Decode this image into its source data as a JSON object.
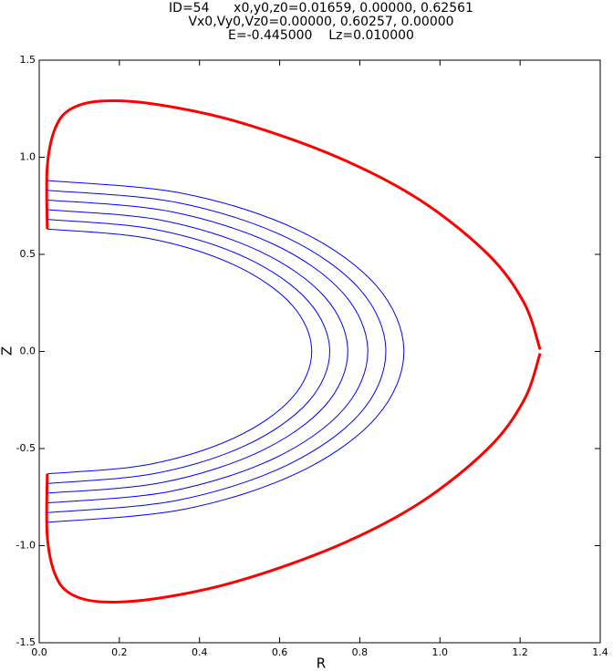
{
  "chart_data": {
    "type": "line",
    "title": [
      "ID=54      x0,y0,z0=0.01659, 0.00000, 0.62561",
      "Vx0,Vy0,Vz0=0.00000, 0.60257, 0.00000",
      "E=-0.445000    Lz=0.010000"
    ],
    "xlabel": "R",
    "ylabel": "Z",
    "xlim": [
      0,
      1.4
    ],
    "ylim": [
      -1.5,
      1.5
    ],
    "xticks": [
      {
        "value": 0,
        "label": "0.0"
      },
      0.2,
      0.4,
      0.6,
      0.8,
      {
        "value": 1,
        "label": "1.0"
      },
      1.2,
      1.4
    ],
    "yticks": [
      -1.5,
      {
        "value": -1,
        "label": "-1.0"
      },
      -0.5,
      {
        "value": 0,
        "label": "0.0"
      },
      0.5,
      {
        "value": 1,
        "label": "1.0"
      },
      1.5
    ],
    "grid": false,
    "series": [
      {
        "color": "#ff0000",
        "linewidth": 3,
        "x": [
          0.02,
          0.02,
          0.04,
          0.08,
          0.16,
          0.3,
          0.5,
          0.745,
          0.95,
          1.12,
          1.21,
          1.25,
          null,
          1.25,
          1.21,
          1.12,
          0.95,
          0.745,
          0.5,
          0.3,
          0.16,
          0.08,
          0.04,
          0.02,
          0.02
        ],
        "values": [
          0.63,
          0.95,
          1.15,
          1.25,
          1.29,
          1.27,
          1.18,
          1.0,
          0.78,
          0.5,
          0.25,
          0.01,
          null,
          -0.01,
          -0.25,
          -0.5,
          -0.78,
          -1.0,
          -1.18,
          -1.27,
          -1.29,
          -1.25,
          -1.15,
          -0.95,
          -0.63
        ]
      },
      {
        "color": "#0000ff",
        "linewidth": 1,
        "x": [
          0.02,
          0.273,
          0.487,
          0.63,
          0.68,
          0.63,
          0.487,
          0.273,
          0.02
        ],
        "values": [
          0.63,
          0.582,
          0.445,
          0.241,
          0,
          -0.241,
          -0.445,
          -0.582,
          -0.63
        ]
      },
      {
        "color": "#0000ff",
        "linewidth": 1,
        "x": [
          0.02,
          0.29,
          0.518,
          0.671,
          0.725,
          0.671,
          0.518,
          0.29,
          0.02
        ],
        "values": [
          0.68,
          0.628,
          0.481,
          0.26,
          0,
          -0.26,
          -0.481,
          -0.628,
          -0.68
        ]
      },
      {
        "color": "#0000ff",
        "linewidth": 1,
        "x": [
          0.02,
          0.307,
          0.55,
          0.713,
          0.77,
          0.713,
          0.55,
          0.307,
          0.02
        ],
        "values": [
          0.73,
          0.675,
          0.516,
          0.28,
          0,
          -0.28,
          -0.516,
          -0.675,
          -0.73
        ]
      },
      {
        "color": "#0000ff",
        "linewidth": 1,
        "x": [
          0.02,
          0.326,
          0.586,
          0.759,
          0.82,
          0.759,
          0.586,
          0.326,
          0.02
        ],
        "values": [
          0.78,
          0.721,
          0.551,
          0.299,
          0,
          -0.299,
          -0.551,
          -0.721,
          -0.78
        ]
      },
      {
        "color": "#0000ff",
        "linewidth": 1,
        "x": [
          0.02,
          0.344,
          0.617,
          0.801,
          0.865,
          0.801,
          0.617,
          0.344,
          0.02
        ],
        "values": [
          0.83,
          0.767,
          0.587,
          0.318,
          0,
          -0.318,
          -0.587,
          -0.767,
          -0.83
        ]
      },
      {
        "color": "#0000ff",
        "linewidth": 1,
        "x": [
          0.02,
          0.361,
          0.649,
          0.842,
          0.91,
          0.842,
          0.649,
          0.361,
          0.02
        ],
        "values": [
          0.88,
          0.813,
          0.622,
          0.337,
          0,
          -0.337,
          -0.622,
          -0.813,
          -0.88
        ]
      }
    ]
  }
}
